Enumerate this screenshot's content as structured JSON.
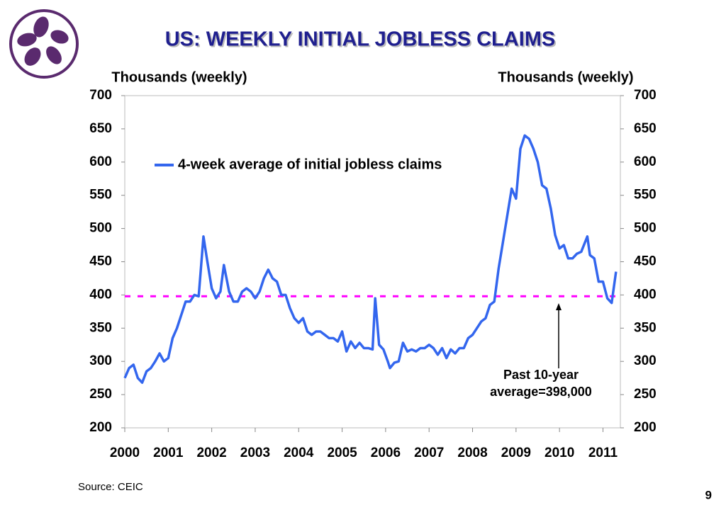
{
  "chart_data": {
    "type": "line",
    "title": "US: WEEKLY INITIAL JOBLESS CLAIMS",
    "ylabel": "Thousands (weekly)",
    "y2label": "Thousands (weekly)",
    "source": "Source: CEIC",
    "page_number": "9",
    "annotation": [
      "Past 10-year",
      "average=398,000"
    ],
    "reference_line": {
      "value": 398,
      "color": "#ff00ff"
    },
    "xlim": [
      2000,
      2011.4
    ],
    "xticks": [
      2000,
      2001,
      2002,
      2003,
      2004,
      2005,
      2006,
      2007,
      2008,
      2009,
      2010,
      2011
    ],
    "ylim": [
      200,
      700
    ],
    "yticks": [
      200,
      250,
      300,
      350,
      400,
      450,
      500,
      550,
      600,
      650,
      700
    ],
    "y2lim": [
      200,
      700
    ],
    "y2ticks": [
      200,
      250,
      300,
      350,
      400,
      450,
      500,
      550,
      600,
      650,
      700
    ],
    "legend": "upper left",
    "x": [
      2000.0,
      2000.1,
      2000.2,
      2000.3,
      2000.4,
      2000.5,
      2000.6,
      2000.7,
      2000.8,
      2000.9,
      2001.0,
      2001.1,
      2001.2,
      2001.3,
      2001.4,
      2001.5,
      2001.6,
      2001.7,
      2001.81,
      2001.9,
      2002.0,
      2002.1,
      2002.2,
      2002.28,
      2002.4,
      2002.5,
      2002.6,
      2002.7,
      2002.8,
      2002.9,
      2003.0,
      2003.1,
      2003.2,
      2003.3,
      2003.4,
      2003.5,
      2003.6,
      2003.7,
      2003.8,
      2003.9,
      2004.0,
      2004.1,
      2004.2,
      2004.3,
      2004.4,
      2004.5,
      2004.6,
      2004.7,
      2004.8,
      2004.9,
      2005.0,
      2005.1,
      2005.2,
      2005.3,
      2005.4,
      2005.5,
      2005.6,
      2005.7,
      2005.76,
      2005.85,
      2005.95,
      2006.05,
      2006.1,
      2006.2,
      2006.3,
      2006.4,
      2006.5,
      2006.6,
      2006.7,
      2006.8,
      2006.9,
      2007.0,
      2007.1,
      2007.2,
      2007.3,
      2007.4,
      2007.5,
      2007.6,
      2007.7,
      2007.8,
      2007.9,
      2008.0,
      2008.1,
      2008.2,
      2008.3,
      2008.4,
      2008.5,
      2008.6,
      2008.7,
      2008.8,
      2008.9,
      2009.0,
      2009.1,
      2009.2,
      2009.3,
      2009.4,
      2009.5,
      2009.6,
      2009.7,
      2009.8,
      2009.9,
      2010.0,
      2010.1,
      2010.2,
      2010.3,
      2010.4,
      2010.5,
      2010.64,
      2010.7,
      2010.8,
      2010.9,
      2011.0,
      2011.1,
      2011.2,
      2011.3
    ],
    "series": [
      {
        "name": "4-week average of initial jobless claims",
        "color": "#3366ee",
        "values": [
          275,
          290,
          295,
          275,
          268,
          285,
          290,
          300,
          312,
          300,
          305,
          335,
          350,
          370,
          390,
          390,
          400,
          398,
          488,
          450,
          410,
          395,
          405,
          445,
          405,
          390,
          390,
          405,
          410,
          405,
          395,
          405,
          425,
          438,
          425,
          420,
          400,
          400,
          380,
          365,
          358,
          365,
          345,
          340,
          345,
          345,
          340,
          335,
          335,
          330,
          345,
          315,
          330,
          320,
          328,
          320,
          320,
          318,
          395,
          325,
          318,
          300,
          290,
          298,
          300,
          328,
          315,
          318,
          315,
          320,
          320,
          325,
          320,
          310,
          320,
          305,
          318,
          312,
          320,
          320,
          335,
          340,
          350,
          360,
          365,
          385,
          390,
          440,
          480,
          520,
          560,
          545,
          620,
          640,
          635,
          620,
          600,
          565,
          560,
          530,
          490,
          470,
          475,
          455,
          455,
          462,
          465,
          488,
          460,
          455,
          420,
          420,
          395,
          388,
          435
        ]
      }
    ]
  }
}
